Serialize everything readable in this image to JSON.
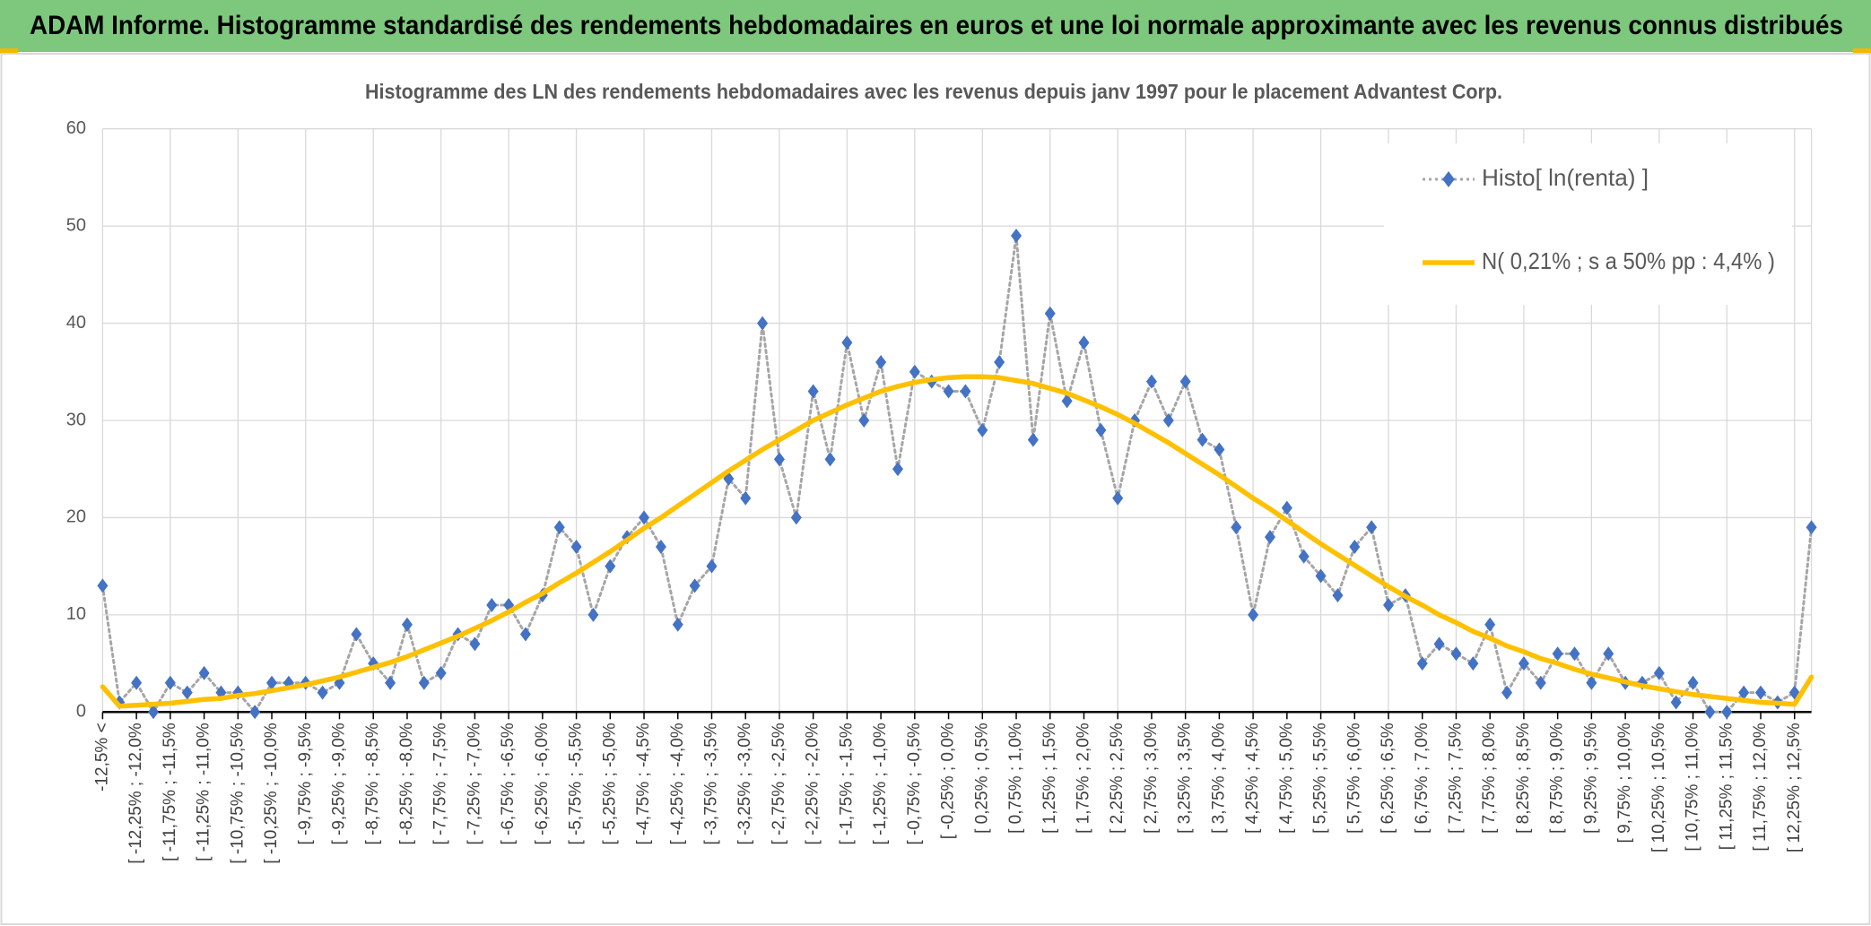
{
  "chart_data": {
    "type": "line",
    "title": "ADAM Informe. Histogramme standardisé des rendements hebdomadaires en euros et une loi normale approximante avec les revenus connus distribués",
    "subtitle": "Histogramme des LN des rendements hebdomadaires avec les revenus depuis janv 1997 pour le placement Advantest Corp.",
    "categories": [
      "-12,5% <",
      null,
      "[ -12,25% ; -12,0%",
      null,
      "[ -11,75% ; -11,5%",
      null,
      "[ -11,25% ; -11,0%",
      null,
      "[ -10,75% ; -10,5%",
      null,
      "[ -10,25% ; -10,0%",
      null,
      "[ -9,75% ; -9,5%",
      null,
      "[ -9,25% ; -9,0%",
      null,
      "[ -8,75% ; -8,5%",
      null,
      "[ -8,25% ; -8,0%",
      null,
      "[ -7,75% ; -7,5%",
      null,
      "[ -7,25% ; -7,0%",
      null,
      "[ -6,75% ; -6,5%",
      null,
      "[ -6,25% ; -6,0%",
      null,
      "[ -5,75% ; -5,5%",
      null,
      "[ -5,25% ; -5,0%",
      null,
      "[ -4,75% ; -4,5%",
      null,
      "[ -4,25% ; -4,0%",
      null,
      "[ -3,75% ; -3,5%",
      null,
      "[ -3,25% ; -3,0%",
      null,
      "[ -2,75% ; -2,5%",
      null,
      "[ -2,25% ; -2,0%",
      null,
      "[ -1,75% ; -1,5%",
      null,
      "[ -1,25% ; -1,0%",
      null,
      "[ -0,75% ; -0,5%",
      null,
      "[ -0,25% ; 0,0%",
      null,
      "[ 0,25% ; 0,5%",
      null,
      "[ 0,75% ; 1,0%",
      null,
      "[ 1,25% ; 1,5%",
      null,
      "[ 1,75% ; 2,0%",
      null,
      "[ 2,25% ; 2,5%",
      null,
      "[ 2,75% ; 3,0%",
      null,
      "[ 3,25% ; 3,5%",
      null,
      "[ 3,75% ; 4,0%",
      null,
      "[ 4,25% ; 4,5%",
      null,
      "[ 4,75% ; 5,0%",
      null,
      "[ 5,25% ; 5,5%",
      null,
      "[ 5,75% ; 6,0%",
      null,
      "[ 6,25% ; 6,5%",
      null,
      "[ 6,75% ; 7,0%",
      null,
      "[ 7,25% ; 7,5%",
      null,
      "[ 7,75% ; 8,0%",
      null,
      "[ 8,25% ; 8,5%",
      null,
      "[ 8,75% ; 9,0%",
      null,
      "[ 9,25% ; 9,5%",
      null,
      "[ 9,75% ; 10,0%",
      null,
      "[ 10,25% ; 10,5%",
      null,
      "[ 10,75% ; 11,0%",
      null,
      "[ 11,25% ; 11,5%",
      null,
      "[ 11,75% ; 12,0%",
      null,
      "[ 12,25% ; 12,5%",
      null
    ],
    "series": [
      {
        "name": "Histo[ ln(renta) ]",
        "color": "#4472c4",
        "line_color": "#a6a6a6",
        "marker": "diamond",
        "line_style": "dotted",
        "values": [
          13,
          1,
          3,
          0,
          3,
          2,
          4,
          2,
          2,
          0,
          3,
          3,
          3,
          2,
          3,
          8,
          5,
          3,
          9,
          3,
          4,
          8,
          7,
          11,
          11,
          8,
          12,
          19,
          17,
          10,
          15,
          18,
          20,
          17,
          9,
          13,
          15,
          24,
          22,
          40,
          26,
          20,
          33,
          26,
          38,
          30,
          36,
          25,
          35,
          34,
          33,
          33,
          29,
          36,
          49,
          28,
          41,
          32,
          38,
          29,
          22,
          30,
          34,
          30,
          34,
          28,
          27,
          19,
          10,
          18,
          21,
          16,
          14,
          12,
          17,
          19,
          11,
          12,
          5,
          7,
          6,
          5,
          9,
          2,
          5,
          3,
          6,
          6,
          3,
          6,
          3,
          3,
          4,
          1,
          3,
          0,
          0,
          2,
          2,
          1,
          2,
          19
        ]
      },
      {
        "name": "N( 0,21% ; s a 50% pp : 4,4% )",
        "color": "#ffc000",
        "marker": "none",
        "line_style": "solid",
        "values": [
          2.6,
          0.6,
          0.7,
          0.8,
          0.9,
          1.1,
          1.3,
          1.4,
          1.7,
          1.9,
          2.2,
          2.5,
          2.8,
          3.2,
          3.6,
          4.1,
          4.6,
          5.1,
          5.7,
          6.4,
          7.1,
          7.8,
          8.6,
          9.4,
          10.3,
          11.3,
          12.2,
          13.3,
          14.3,
          15.4,
          16.5,
          17.7,
          18.9,
          20.0,
          21.2,
          22.4,
          23.6,
          24.8,
          25.9,
          27.0,
          28.0,
          29.0,
          30.0,
          30.8,
          31.6,
          32.3,
          33.0,
          33.5,
          33.9,
          34.2,
          34.4,
          34.5,
          34.5,
          34.4,
          34.1,
          33.8,
          33.3,
          32.8,
          32.1,
          31.4,
          30.6,
          29.7,
          28.7,
          27.7,
          26.6,
          25.5,
          24.4,
          23.2,
          22.0,
          20.9,
          19.7,
          18.5,
          17.3,
          16.2,
          15.1,
          14.0,
          12.9,
          11.9,
          11.0,
          10.0,
          9.2,
          8.3,
          7.6,
          6.8,
          6.2,
          5.5,
          5.0,
          4.4,
          3.9,
          3.5,
          3.1,
          2.7,
          2.4,
          2.1,
          1.8,
          1.6,
          1.4,
          1.2,
          1.0,
          0.9,
          0.8,
          3.6
        ]
      }
    ],
    "ylim": [
      0,
      60
    ],
    "yticks": [
      0,
      10,
      20,
      30,
      40,
      50,
      60
    ],
    "grid": true,
    "legend": "top-right"
  }
}
